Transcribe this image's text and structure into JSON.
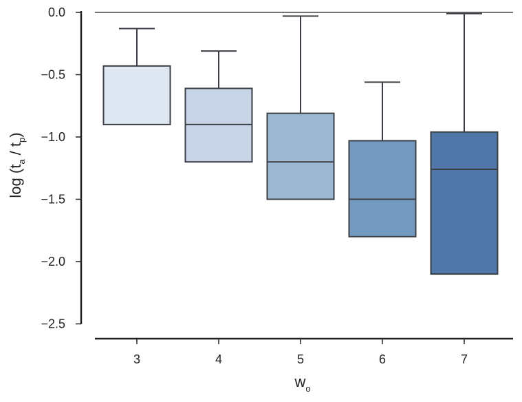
{
  "chart_data": {
    "type": "box",
    "title": "",
    "xlabel": "w",
    "xlabel_subscript": "o",
    "ylabel": {
      "prefix": "log (t",
      "sub1": "a",
      "mid": " / t",
      "sub2": "p",
      "suffix": ")"
    },
    "ylim": [
      -2.6,
      0.0
    ],
    "yticks": [
      0.0,
      -0.5,
      -1.0,
      -1.5,
      -2.0,
      -2.5
    ],
    "ytick_labels": [
      "0.0",
      "−0.5",
      "−1.0",
      "−1.5",
      "−2.0",
      "−2.5"
    ],
    "categories": [
      "3",
      "4",
      "5",
      "6",
      "7"
    ],
    "boxes": [
      {
        "category": "3",
        "whisker_low": -0.9,
        "q1": -0.9,
        "median": -0.9,
        "q3": -0.43,
        "whisker_high": -0.13,
        "color": "#dfe7f2"
      },
      {
        "category": "4",
        "whisker_low": -1.2,
        "q1": -1.2,
        "median": -0.9,
        "q3": -0.61,
        "whisker_high": -0.31,
        "color": "#c6d4e6"
      },
      {
        "category": "5",
        "whisker_low": -1.5,
        "q1": -1.5,
        "median": -1.2,
        "q3": -0.81,
        "whisker_high": -0.03,
        "color": "#9db8d3"
      },
      {
        "category": "6",
        "whisker_low": -1.8,
        "q1": -1.8,
        "median": -1.5,
        "q3": -1.03,
        "whisker_high": -0.56,
        "color": "#7499c0"
      },
      {
        "category": "7",
        "whisker_low": -2.1,
        "q1": -2.1,
        "median": -1.26,
        "q3": -0.96,
        "whisker_high": -0.01,
        "color": "#5077a7"
      }
    ],
    "reference_line": 0.0,
    "grid": false,
    "legend": "none"
  }
}
